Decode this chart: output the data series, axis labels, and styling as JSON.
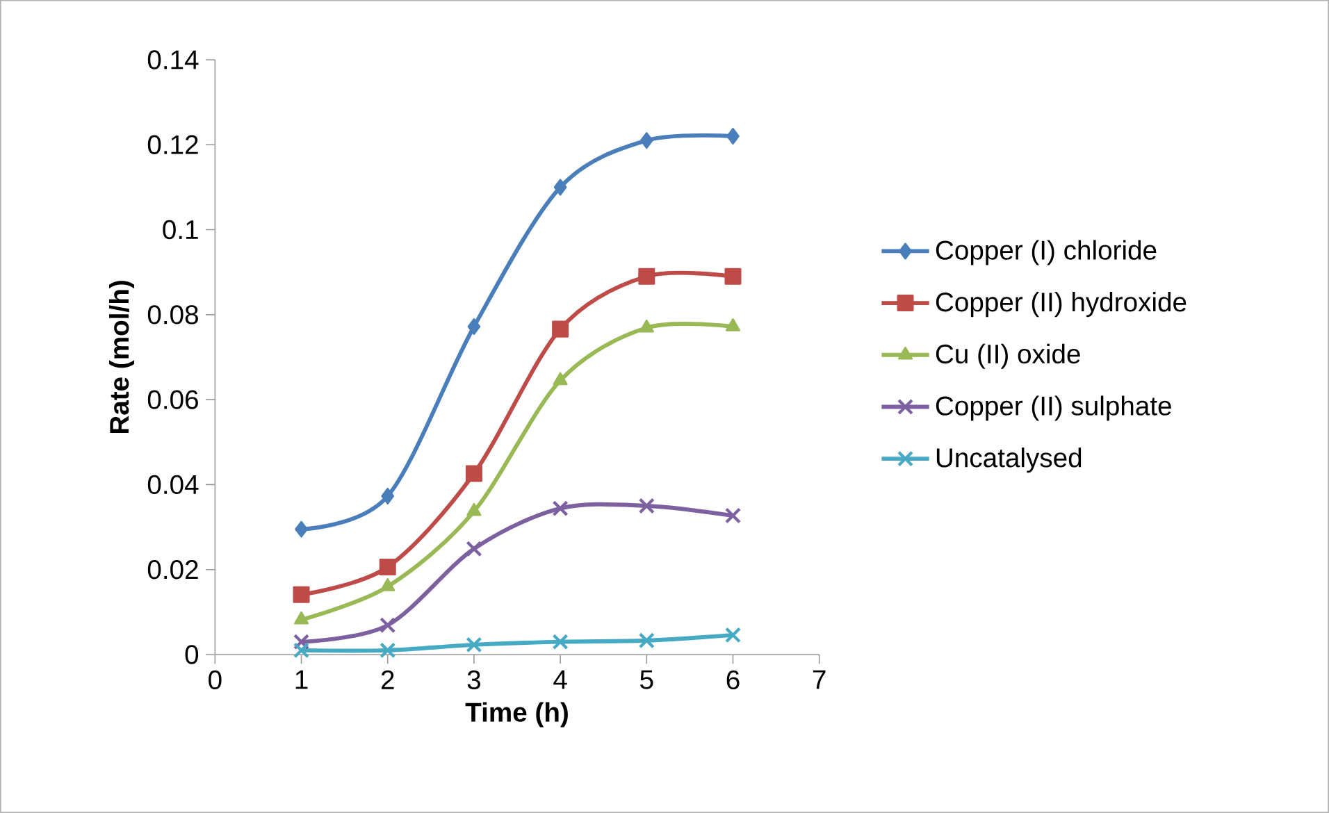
{
  "chart_data": {
    "type": "line",
    "xlabel": "Time (h)",
    "ylabel": "Rate (mol/h)",
    "x": [
      1,
      2,
      3,
      4,
      5,
      6
    ],
    "series": [
      {
        "name": "Copper (I) chloride",
        "color": "#4a7ebb",
        "marker": "diamond",
        "values": [
          0.0295,
          0.0373,
          0.0772,
          0.11,
          0.121,
          0.122
        ]
      },
      {
        "name": "Copper (II) hydroxide",
        "color": "#be4b48",
        "marker": "square",
        "values": [
          0.0141,
          0.0206,
          0.0426,
          0.0766,
          0.089,
          0.089
        ]
      },
      {
        "name": "Cu (II) oxide",
        "color": "#98b954",
        "marker": "triangle",
        "values": [
          0.0082,
          0.016,
          0.0337,
          0.0645,
          0.0769,
          0.0772
        ]
      },
      {
        "name": "Copper (II) sulphate",
        "color": "#7d60a0",
        "marker": "cross",
        "values": [
          0.003,
          0.0069,
          0.0249,
          0.0344,
          0.035,
          0.0327
        ]
      },
      {
        "name": "Uncatalysed",
        "color": "#46aac5",
        "marker": "cross",
        "values": [
          0.001,
          0.001,
          0.0023,
          0.003,
          0.0033,
          0.0046
        ]
      }
    ],
    "xlim": [
      0,
      7
    ],
    "xticks": [
      0,
      1,
      2,
      3,
      4,
      5,
      6,
      7
    ],
    "ylim": [
      0,
      0.14
    ],
    "yticks": [
      0,
      0.02,
      0.04,
      0.06,
      0.08,
      0.1,
      0.12,
      0.14
    ],
    "grid": false,
    "legend": "right",
    "line_style": "solid"
  }
}
